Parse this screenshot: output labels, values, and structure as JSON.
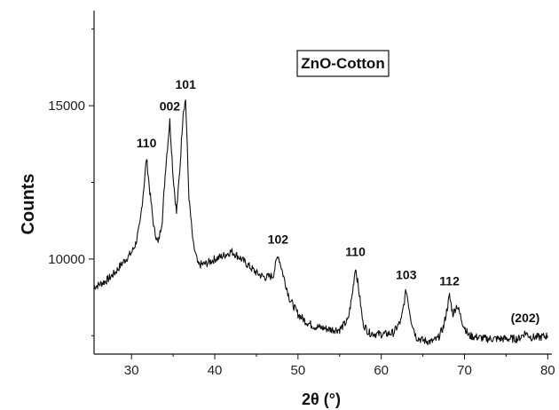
{
  "chart_data": {
    "type": "line",
    "title": "",
    "xlabel": "2θ (°)",
    "ylabel": "Counts",
    "xlim": [
      25.5,
      80.5
    ],
    "ylim": [
      6900,
      18100
    ],
    "xticks": [
      30,
      40,
      50,
      60,
      70,
      80
    ],
    "yticks": [
      10000,
      15000
    ],
    "legend": "top-right",
    "grid": false,
    "series": [
      {
        "name": "ZnO-Cotton",
        "color": "#111111",
        "x": [
          25.5,
          26,
          27,
          28,
          29,
          30,
          30.5,
          31,
          31.5,
          31.8,
          32.2,
          32.7,
          33.2,
          33.7,
          34.1,
          34.6,
          35.0,
          35.4,
          35.8,
          36.2,
          36.5,
          36.9,
          37.4,
          38,
          39,
          40,
          41,
          42,
          43,
          44,
          45,
          46,
          47,
          47.6,
          48.2,
          49,
          50,
          51,
          52,
          53,
          54,
          55,
          56,
          56.5,
          56.9,
          57.3,
          57.8,
          58.5,
          59.5,
          60.5,
          61.5,
          62.4,
          63.0,
          63.6,
          64.2,
          65,
          66,
          66.8,
          67.5,
          68.2,
          68.6,
          69.1,
          69.8,
          70.5,
          71.5,
          72.5,
          73.5,
          74.5,
          75.5,
          76.5,
          77.3,
          78,
          79,
          80
        ],
        "y": [
          9100,
          9150,
          9300,
          9550,
          9900,
          10200,
          10500,
          11100,
          12400,
          13300,
          12200,
          11000,
          10500,
          11300,
          13000,
          14500,
          12700,
          11500,
          12900,
          14800,
          15200,
          12000,
          10500,
          9800,
          9850,
          10000,
          10100,
          10250,
          10050,
          9800,
          9550,
          9400,
          9450,
          10150,
          9500,
          8700,
          8200,
          7950,
          7800,
          7750,
          7700,
          7700,
          8000,
          8800,
          9750,
          9000,
          7900,
          7600,
          7550,
          7550,
          7600,
          8000,
          9000,
          8000,
          7450,
          7350,
          7300,
          7400,
          7800,
          8800,
          8200,
          8500,
          7900,
          7500,
          7450,
          7400,
          7400,
          7400,
          7400,
          7400,
          7600,
          7450,
          7450,
          7500
        ]
      }
    ],
    "annotations": [
      {
        "text": "110",
        "x": 31.8,
        "y": 13300
      },
      {
        "text": "002",
        "x": 34.6,
        "y": 14500
      },
      {
        "text": "101",
        "x": 36.5,
        "y": 15200
      },
      {
        "text": "102",
        "x": 47.6,
        "y": 10150
      },
      {
        "text": "110",
        "x": 56.9,
        "y": 9750
      },
      {
        "text": "103",
        "x": 63.0,
        "y": 9000
      },
      {
        "text": "112",
        "x": 68.2,
        "y": 8800
      },
      {
        "text": "(202)",
        "x": 77.3,
        "y": 7600
      }
    ]
  }
}
